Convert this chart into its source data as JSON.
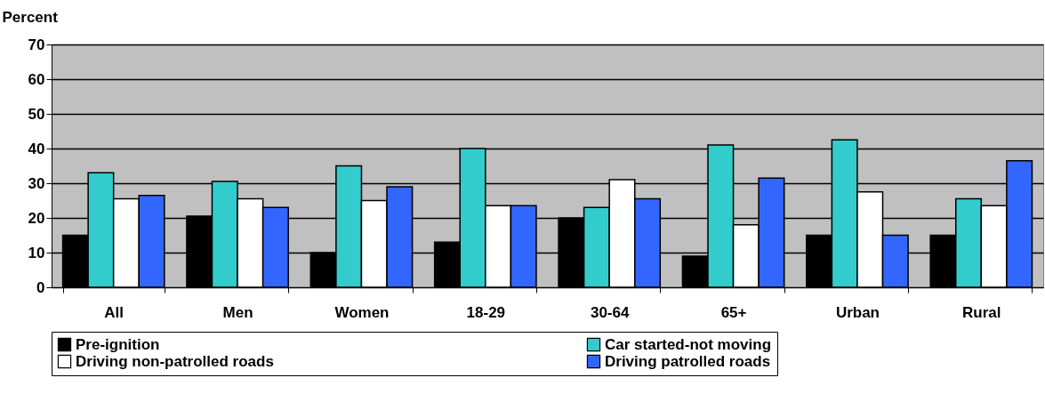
{
  "chart_data": {
    "type": "bar",
    "ylabel": "Percent",
    "categories": [
      "All",
      "Men",
      "Women",
      "18-29",
      "30-64",
      "65+",
      "Urban",
      "Rural"
    ],
    "series": [
      {
        "name": "Pre-ignition",
        "color": "#000000",
        "values": [
          15,
          20.5,
          10,
          13,
          20,
          9,
          15,
          15
        ]
      },
      {
        "name": "Car started-not moving",
        "color": "#33cccc",
        "values": [
          33,
          30.5,
          35,
          40,
          23,
          41,
          42.5,
          25.5
        ]
      },
      {
        "name": "Driving non-patrolled roads",
        "color": "#ffffff",
        "values": [
          25.5,
          25.5,
          25,
          23.5,
          31,
          18,
          27.5,
          23.5
        ]
      },
      {
        "name": "Driving patrolled roads",
        "color": "#3366ff",
        "values": [
          26.5,
          23,
          29,
          23.5,
          25.5,
          31.5,
          15,
          36.5
        ]
      }
    ],
    "ylim": [
      0,
      70
    ],
    "yticks": [
      0,
      10,
      20,
      30,
      40,
      50,
      60,
      70
    ],
    "grid": "y",
    "legend": "bottom"
  }
}
